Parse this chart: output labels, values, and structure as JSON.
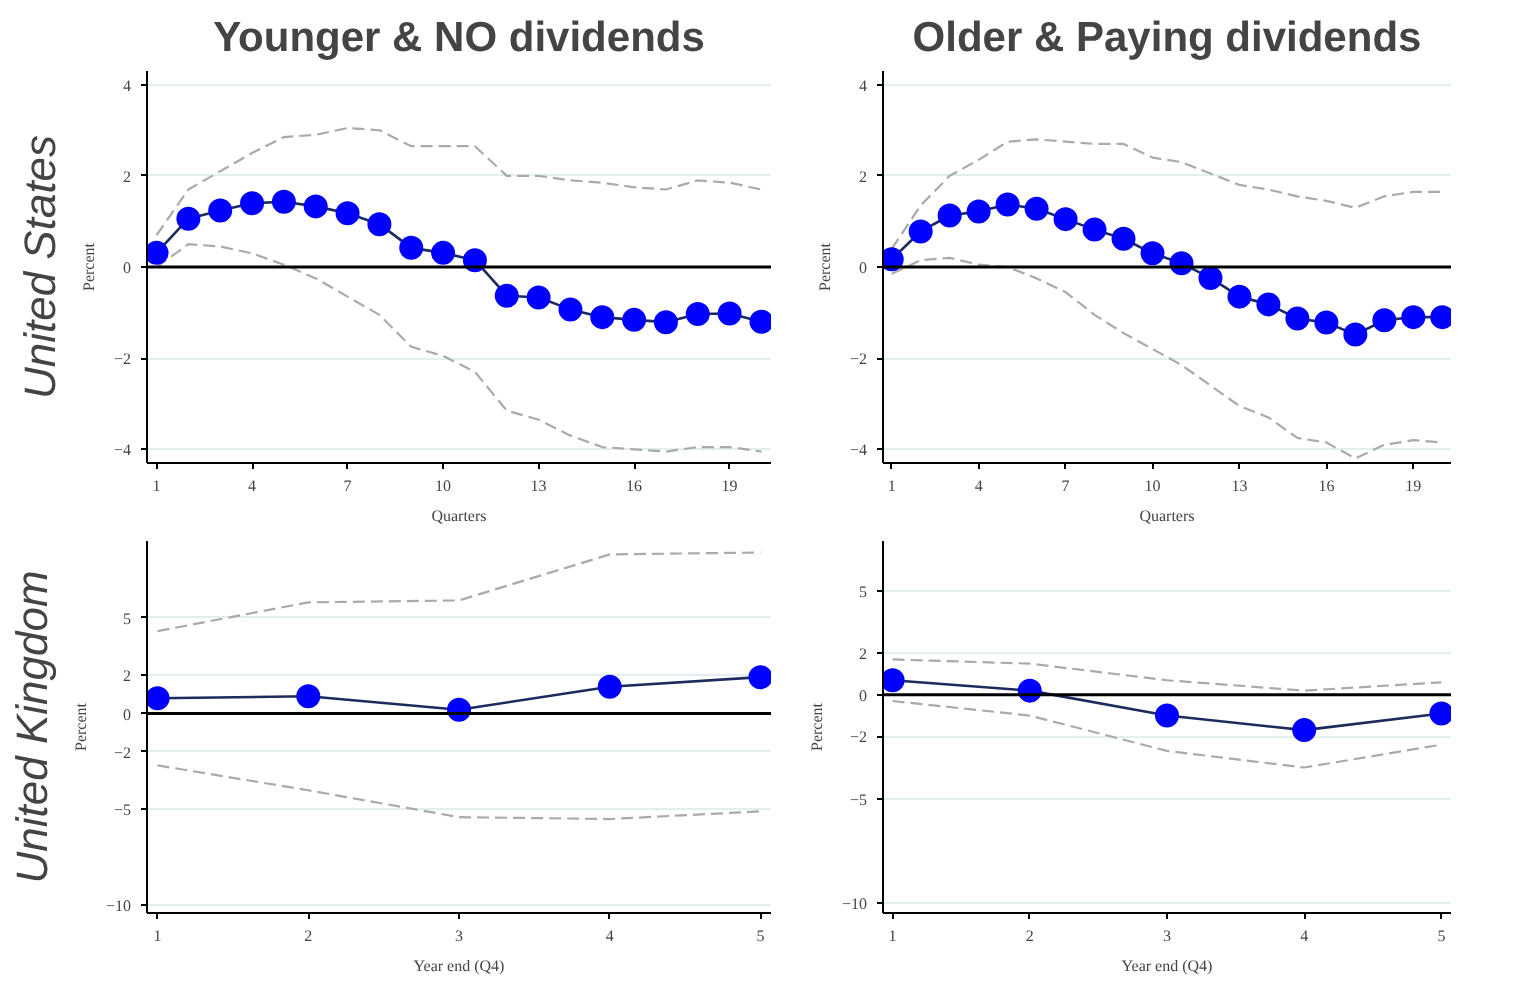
{
  "chart_data": [
    {
      "type": "line",
      "title": "Younger & NO dividends",
      "annotations": [
        "United States"
      ],
      "xlabel": "Quarters",
      "ylabel": "Percent",
      "x": [
        1,
        2,
        3,
        4,
        5,
        6,
        7,
        8,
        9,
        10,
        11,
        12,
        13,
        14,
        15,
        16,
        17,
        18,
        19,
        20
      ],
      "xlim": [
        0.7,
        20.3
      ],
      "xticks": [
        1,
        4,
        7,
        10,
        13,
        16,
        19
      ],
      "ylim": [
        -4.3,
        4.3
      ],
      "yticks": [
        -4,
        -2,
        0,
        2,
        4
      ],
      "grid": "y",
      "ref_lines": [
        {
          "axis": "y",
          "value": 0,
          "color": "#000000"
        }
      ],
      "series": [
        {
          "color": "#aaaaaa",
          "line_style": "dashed",
          "marker": "none",
          "values": [
            0.7,
            1.7,
            2.1,
            2.5,
            2.85,
            2.9,
            3.05,
            3.0,
            2.65,
            2.65,
            2.65,
            2.0,
            2.0,
            1.9,
            1.85,
            1.75,
            1.7,
            1.9,
            1.85,
            1.7
          ]
        },
        {
          "color": "#aaaaaa",
          "line_style": "dashed",
          "marker": "none",
          "values": [
            0.0,
            0.5,
            0.45,
            0.3,
            0.05,
            -0.25,
            -0.65,
            -1.05,
            -1.75,
            -1.95,
            -2.3,
            -3.15,
            -3.35,
            -3.7,
            -3.95,
            -4.0,
            -4.05,
            -3.95,
            -3.95,
            -4.05
          ]
        },
        {
          "color": "#1c2b5c",
          "line_style": "solid",
          "marker": "circle",
          "colors": [
            "#0000ff",
            "#0000ff",
            "#0000ff",
            "#0000ff",
            "#0000ff",
            "#0000ff",
            "#0000ff",
            "#0000ff",
            "#0000ff",
            "#0000ff",
            "#0000ff",
            "#0000ff",
            "#0000ff",
            "#0000ff",
            "#0000ff",
            "#0000ff",
            "#0000ff",
            "#0000ff",
            "#0000ff",
            "#0000ff"
          ],
          "values": [
            0.31,
            1.06,
            1.24,
            1.4,
            1.43,
            1.33,
            1.18,
            0.94,
            0.42,
            0.31,
            0.15,
            -0.63,
            -0.67,
            -0.93,
            -1.1,
            -1.16,
            -1.21,
            -1.03,
            -1.02,
            -1.2
          ]
        }
      ]
    },
    {
      "type": "line",
      "title": "Older & Paying dividends",
      "xlabel": "Quarters",
      "ylabel": "Percent",
      "x": [
        1,
        2,
        3,
        4,
        5,
        6,
        7,
        8,
        9,
        10,
        11,
        12,
        13,
        14,
        15,
        16,
        17,
        18,
        19,
        20
      ],
      "xlim": [
        0.7,
        20.3
      ],
      "xticks": [
        1,
        4,
        7,
        10,
        13,
        16,
        19
      ],
      "ylim": [
        -4.3,
        4.3
      ],
      "yticks": [
        -4,
        -2,
        0,
        2,
        4
      ],
      "grid": "y",
      "ref_lines": [
        {
          "axis": "y",
          "value": 0,
          "color": "#000000"
        }
      ],
      "series": [
        {
          "color": "#aaaaaa",
          "line_style": "dashed",
          "marker": "none",
          "values": [
            0.4,
            1.35,
            2.0,
            2.35,
            2.75,
            2.8,
            2.75,
            2.7,
            2.7,
            2.4,
            2.3,
            2.05,
            1.8,
            1.7,
            1.55,
            1.45,
            1.3,
            1.55,
            1.65,
            1.65
          ]
        },
        {
          "color": "#aaaaaa",
          "line_style": "dashed",
          "marker": "none",
          "values": [
            -0.15,
            0.15,
            0.2,
            0.05,
            0.0,
            -0.25,
            -0.55,
            -1.05,
            -1.45,
            -1.8,
            -2.15,
            -2.6,
            -3.05,
            -3.3,
            -3.75,
            -3.85,
            -4.2,
            -3.9,
            -3.8,
            -3.85
          ]
        },
        {
          "color": "#1c2b5c",
          "line_style": "solid",
          "marker": "circle",
          "colors": [
            "#0000ff",
            "#0000ff",
            "#0000ff",
            "#0000ff",
            "#0000ff",
            "#0000ff",
            "#0000ff",
            "#0000ff",
            "#0000ff",
            "#0000ff",
            "#0000ff",
            "#0000ff",
            "#0000ff",
            "#0000ff",
            "#0000ff",
            "#0000ff",
            "#0000ff",
            "#0000ff",
            "#0000ff",
            "#0000ff"
          ],
          "values": [
            0.17,
            0.78,
            1.13,
            1.22,
            1.37,
            1.28,
            1.05,
            0.82,
            0.62,
            0.3,
            0.08,
            -0.24,
            -0.65,
            -0.82,
            -1.13,
            -1.22,
            -1.48,
            -1.17,
            -1.1,
            -1.1
          ]
        }
      ]
    },
    {
      "type": "line",
      "annotations": [
        "United Kingdom"
      ],
      "xlabel": "Year end (Q4)",
      "ylabel": "Percent",
      "x": [
        1,
        2,
        3,
        4,
        5
      ],
      "xlim": [
        0.93,
        5.07
      ],
      "xticks": [
        1,
        2,
        3,
        4,
        5
      ],
      "ylim": [
        -10.4,
        9
      ],
      "yticks": [
        -10,
        -5,
        -2,
        0,
        2,
        5
      ],
      "grid": "y",
      "ref_lines": [
        {
          "axis": "y",
          "value": 0,
          "color": "#000000"
        }
      ],
      "series": [
        {
          "color": "#aaaaaa",
          "line_style": "dashed",
          "marker": "none",
          "values": [
            4.3,
            5.8,
            5.9,
            8.3,
            8.4
          ]
        },
        {
          "color": "#aaaaaa",
          "line_style": "dashed",
          "marker": "none",
          "values": [
            -2.7,
            -4.0,
            -5.4,
            -5.5,
            -5.1
          ]
        },
        {
          "color": "#1c2b5c",
          "line_style": "solid",
          "marker": "circle",
          "colors": [
            "#0000ff",
            "#0000ff",
            "#0000ff",
            "#0000ff",
            "#0000ff"
          ],
          "values": [
            0.8,
            0.9,
            0.2,
            1.4,
            1.9
          ]
        }
      ]
    },
    {
      "type": "line",
      "xlabel": "Year end (Q4)",
      "ylabel": "Percent",
      "x": [
        1,
        2,
        3,
        4,
        5
      ],
      "xlim": [
        0.93,
        5.07
      ],
      "xticks": [
        1,
        2,
        3,
        4,
        5
      ],
      "ylim": [
        -10.5,
        7.4
      ],
      "yticks": [
        -10,
        -5,
        -2,
        0,
        2,
        5
      ],
      "grid": "y",
      "ref_lines": [
        {
          "axis": "y",
          "value": 0,
          "color": "#000000"
        }
      ],
      "series": [
        {
          "color": "#aaaaaa",
          "line_style": "dashed",
          "marker": "none",
          "values": [
            1.7,
            1.5,
            0.7,
            0.2,
            0.6
          ]
        },
        {
          "color": "#aaaaaa",
          "line_style": "dashed",
          "marker": "none",
          "values": [
            -0.3,
            -1.0,
            -2.7,
            -3.5,
            -2.4
          ]
        },
        {
          "color": "#1c2b5c",
          "line_style": "solid",
          "marker": "circle",
          "colors": [
            "#0000ff",
            "#0000ff",
            "#0000ff",
            "#0000ff",
            "#0000ff"
          ],
          "values": [
            0.7,
            0.2,
            -1.0,
            -1.7,
            -0.9
          ]
        }
      ]
    }
  ]
}
